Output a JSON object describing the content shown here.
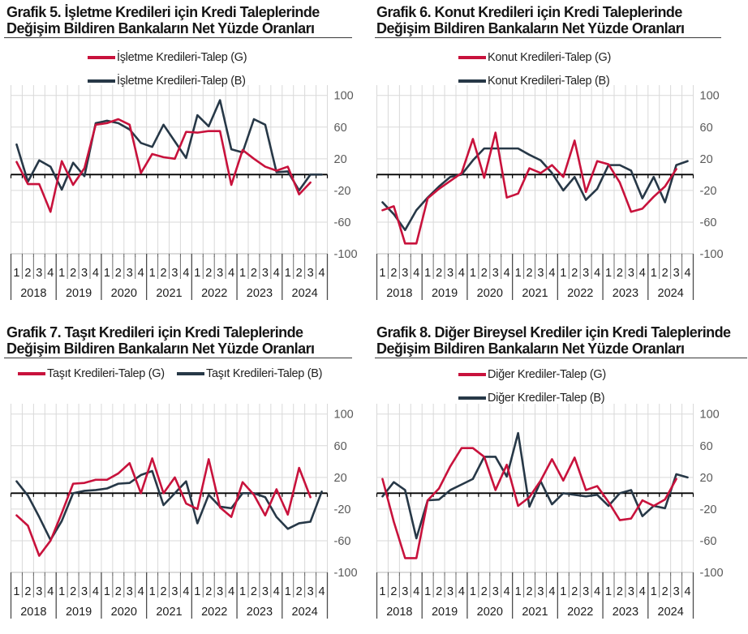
{
  "colors": {
    "g": "#C8123C",
    "b": "#273847",
    "grid": "#D9D9D9",
    "zero": "#000000",
    "tick": "#595959",
    "ylabel": "#595959",
    "text": "#1C1C1C"
  },
  "y_ticks": [
    "100",
    "60",
    "20",
    "-20",
    "-60",
    "-100"
  ],
  "quarters": [
    "1",
    "2",
    "3",
    "4"
  ],
  "years": [
    "2018",
    "2019",
    "2020",
    "2021",
    "2022",
    "2023",
    "2024"
  ],
  "chart_data": [
    {
      "id": "grafik5",
      "type": "line",
      "title_line1": "Grafik 5. İşletme Kredileri için Kredi Taleplerinde",
      "title_line2": "Değişim Bildiren Bankaların Net Yüzde Oranları",
      "legend_layout": "stacked",
      "xlabel": "",
      "ylabel": "",
      "ylim": [
        -100,
        100
      ],
      "categories_note": "quarters 2018Q1-2024Q4; (G) series ends 2024Q3",
      "series": [
        {
          "name": "İşletme Kredileri-Talep (G)",
          "color_key": "g",
          "values": [
            16,
            -12,
            -12,
            -47,
            17,
            -13,
            8,
            63,
            65,
            70,
            63,
            2,
            26,
            22,
            20,
            54,
            53,
            55,
            55,
            -13,
            31,
            20,
            10,
            5,
            10,
            -25,
            -10
          ]
        },
        {
          "name": "İşletme Kredileri-Talep (B)",
          "color_key": "b",
          "values": [
            38,
            -9,
            18,
            10,
            -19,
            15,
            -2,
            65,
            68,
            65,
            57,
            40,
            35,
            63,
            42,
            21,
            75,
            61,
            94,
            32,
            28,
            70,
            63,
            3,
            4,
            -20,
            0,
            0
          ]
        }
      ]
    },
    {
      "id": "grafik6",
      "type": "line",
      "title_line1": "Grafik 6. Konut Kredileri için Kredi Taleplerinde",
      "title_line2": "Değişim Bildiren Bankaların Net Yüzde Oranları",
      "legend_layout": "stacked",
      "xlabel": "",
      "ylabel": "",
      "ylim": [
        -100,
        100
      ],
      "categories_note": "quarters 2018Q1-2024Q4; (G) series ends 2024Q3",
      "series": [
        {
          "name": "Konut Kredileri-Talep (G)",
          "color_key": "g",
          "values": [
            -45,
            -40,
            -87,
            -87,
            -30,
            -18,
            -8,
            2,
            45,
            -4,
            53,
            -29,
            -24,
            8,
            2,
            12,
            -3,
            43,
            -22,
            17,
            13,
            -10,
            -47,
            -43,
            -28,
            -15,
            7
          ]
        },
        {
          "name": "Konut Kredileri-Talep (B)",
          "color_key": "b",
          "values": [
            -35,
            -50,
            -70,
            -45,
            -29,
            -15,
            -3,
            0,
            18,
            33,
            33,
            33,
            33,
            25,
            18,
            2,
            -20,
            -3,
            -32,
            -18,
            12,
            12,
            5,
            -30,
            -3,
            -35,
            12,
            17
          ]
        }
      ]
    },
    {
      "id": "grafik7",
      "type": "line",
      "title_line1": "Grafik 7. Taşıt Kredileri için Kredi Taleplerinde",
      "title_line2": "Değişim Bildiren Bankaların Net Yüzde Oranları",
      "legend_layout": "inline",
      "xlabel": "",
      "ylabel": "",
      "ylim": [
        -100,
        100
      ],
      "categories_note": "quarters 2018Q1-2024Q4; (G) series ends 2024Q3",
      "series": [
        {
          "name": "Taşıt Kredileri-Talep (G)",
          "color_key": "g",
          "values": [
            -28,
            -41,
            -79,
            -60,
            -25,
            12,
            13,
            17,
            17,
            25,
            38,
            0,
            44,
            0,
            20,
            -13,
            -20,
            43,
            -18,
            -30,
            14,
            -2,
            -28,
            5,
            -27,
            32,
            -5
          ]
        },
        {
          "name": "Taşıt Kredileri-Talep (B)",
          "color_key": "b",
          "values": [
            15,
            -3,
            -30,
            -59,
            -35,
            0,
            3,
            4,
            6,
            12,
            13,
            23,
            28,
            -15,
            0,
            15,
            -38,
            -2,
            -17,
            -19,
            0,
            0,
            -5,
            -30,
            -45,
            -38,
            -36,
            2
          ]
        }
      ]
    },
    {
      "id": "grafik8",
      "type": "line",
      "title_line1": "Grafik 8. Diğer Bireysel Krediler için Kredi Taleplerinde",
      "title_line2": "Değişim Bildiren Bankaların Net Yüzde Oranları",
      "legend_layout": "stacked",
      "xlabel": "",
      "ylabel": "",
      "ylim": [
        -100,
        100
      ],
      "categories_note": "quarters 2018Q1-2024Q4; (G) series ends 2024Q3",
      "series": [
        {
          "name": "Diğer Krediler-Talep (G)",
          "color_key": "g",
          "values": [
            18,
            -36,
            -82,
            -82,
            -9,
            6,
            34,
            57,
            57,
            46,
            4,
            36,
            -16,
            -5,
            16,
            43,
            16,
            45,
            4,
            9,
            -11,
            -34,
            -32,
            -9,
            -16,
            -8,
            18
          ]
        },
        {
          "name": "Diğer Krediler-Talep (B)",
          "color_key": "b",
          "values": [
            -4,
            14,
            4,
            -57,
            -9,
            -8,
            4,
            11,
            18,
            46,
            46,
            21,
            76,
            -17,
            15,
            -14,
            0,
            -2,
            -4,
            -2,
            -16,
            0,
            4,
            -29,
            -16,
            -19,
            24,
            20
          ]
        }
      ]
    }
  ]
}
